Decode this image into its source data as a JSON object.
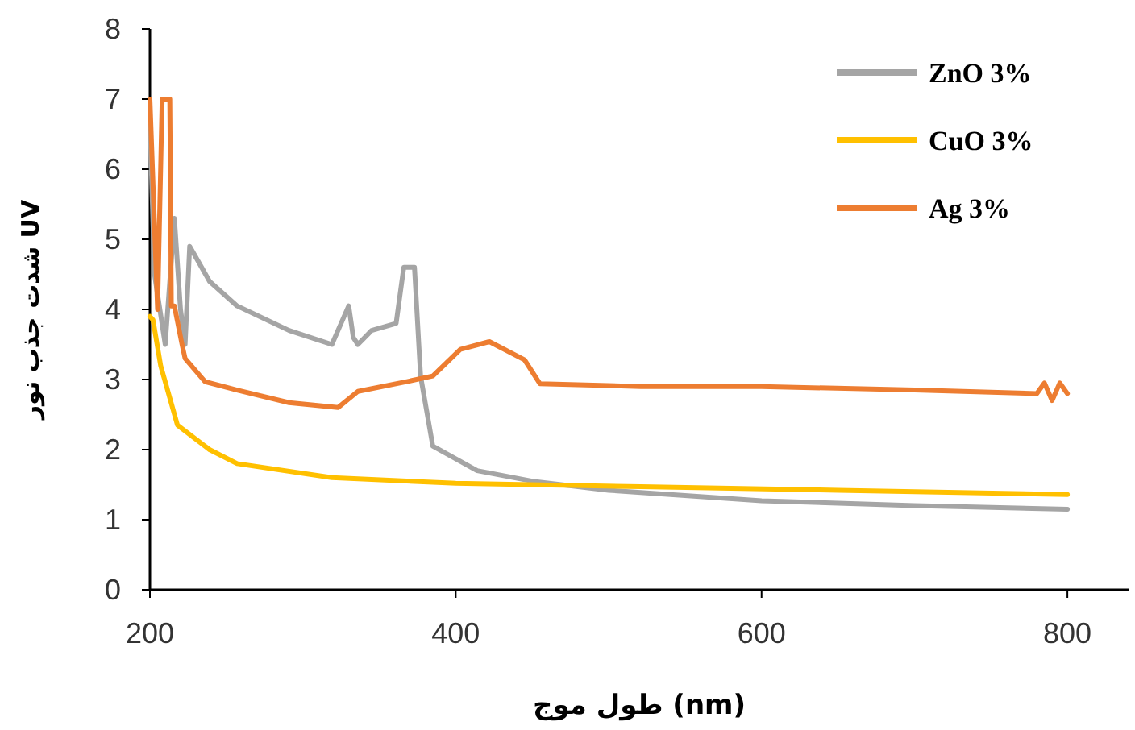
{
  "chart_data": {
    "type": "line",
    "xlabel": "طول موج (nm)",
    "ylabel": "شدت جذب نور UV",
    "xlim": [
      200,
      840
    ],
    "ylim": [
      0,
      8
    ],
    "xticks": [
      200,
      400,
      600,
      800
    ],
    "yticks": [
      0,
      1,
      2,
      3,
      4,
      5,
      6,
      7,
      8
    ],
    "grid": false,
    "legend": "top right",
    "marker": "none",
    "line_style": "solid",
    "series": [
      {
        "name": "ZnO  3%",
        "color": "#a5a5a5",
        "x": [
          200,
          203,
          210,
          216,
          220,
          223,
          226,
          239,
          257,
          291,
          319,
          325,
          330,
          333,
          336,
          345,
          361,
          366,
          373,
          377,
          385,
          414,
          450,
          500,
          600,
          700,
          800
        ],
        "values": [
          6.7,
          4.5,
          3.5,
          5.3,
          4.0,
          3.5,
          4.9,
          4.4,
          4.05,
          3.7,
          3.5,
          3.8,
          4.05,
          3.6,
          3.5,
          3.7,
          3.8,
          4.6,
          4.6,
          3.05,
          2.05,
          1.7,
          1.55,
          1.42,
          1.27,
          1.2,
          1.15
        ]
      },
      {
        "name": "CuO  3%",
        "color": "#ffc000",
        "x": [
          200,
          202,
          207,
          218,
          239,
          257,
          319,
          400,
          521,
          650,
          800
        ],
        "values": [
          3.9,
          3.85,
          3.2,
          2.35,
          2.0,
          1.8,
          1.6,
          1.52,
          1.47,
          1.42,
          1.36
        ]
      },
      {
        "name": "Ag  3%",
        "color": "#ed7d31",
        "x": [
          200,
          205,
          208,
          213,
          214,
          216,
          221,
          223,
          236,
          257,
          291,
          323,
          336,
          368,
          385,
          403,
          422,
          445,
          455,
          521,
          600,
          700,
          780,
          785,
          790,
          795,
          800
        ],
        "values": [
          7.0,
          4.0,
          7.0,
          7.0,
          4.05,
          4.05,
          3.5,
          3.3,
          2.97,
          2.85,
          2.67,
          2.6,
          2.83,
          2.97,
          3.05,
          3.43,
          3.54,
          3.28,
          2.94,
          2.9,
          2.9,
          2.85,
          2.8,
          2.95,
          2.7,
          2.95,
          2.8
        ]
      }
    ]
  }
}
